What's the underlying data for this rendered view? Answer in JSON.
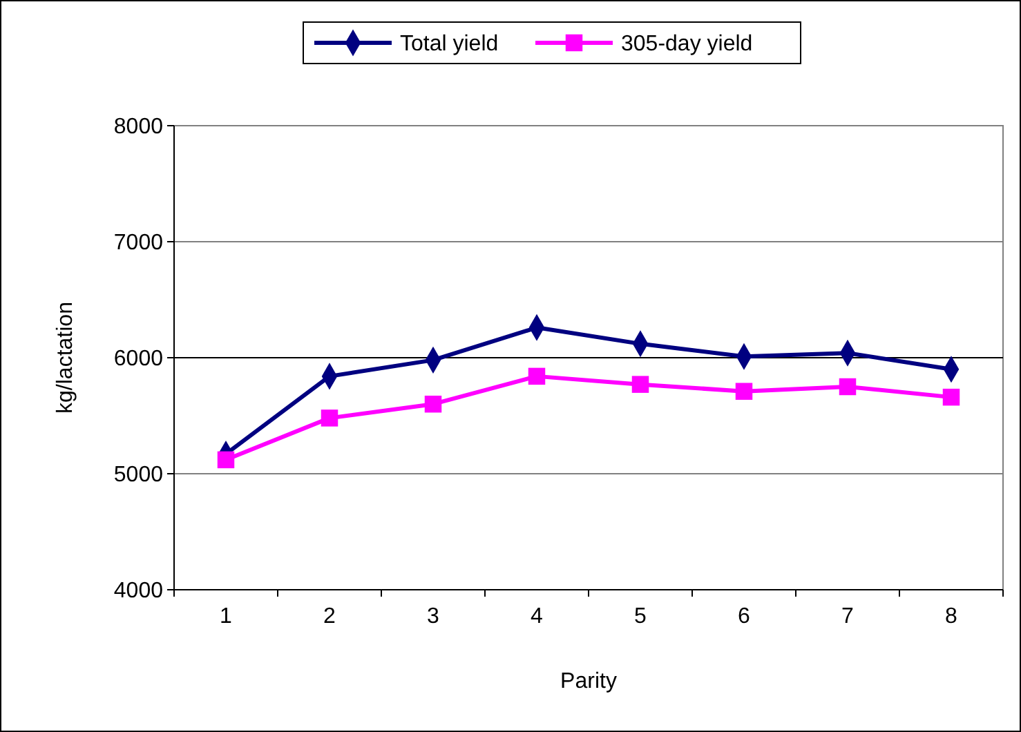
{
  "chart_data": {
    "type": "line",
    "xlabel": "Parity",
    "ylabel": "kg/lactation",
    "categories": [
      "1",
      "2",
      "3",
      "4",
      "5",
      "6",
      "7",
      "8"
    ],
    "series": [
      {
        "name": "Total yield",
        "color": "#000080",
        "marker": "diamond",
        "values": [
          5170,
          5840,
          5980,
          6260,
          6120,
          6010,
          6040,
          5900
        ]
      },
      {
        "name": "305-day yield",
        "color": "#ff00ff",
        "marker": "square",
        "values": [
          5120,
          5480,
          5600,
          5840,
          5770,
          5710,
          5750,
          5660
        ]
      }
    ],
    "ylim": [
      4000,
      8000
    ],
    "yticks": [
      4000,
      5000,
      6000,
      7000,
      8000
    ],
    "grid": "y",
    "legend": "top",
    "ref_lines": [
      {
        "axis": "y",
        "value": 6000,
        "color": "#000000"
      }
    ]
  }
}
